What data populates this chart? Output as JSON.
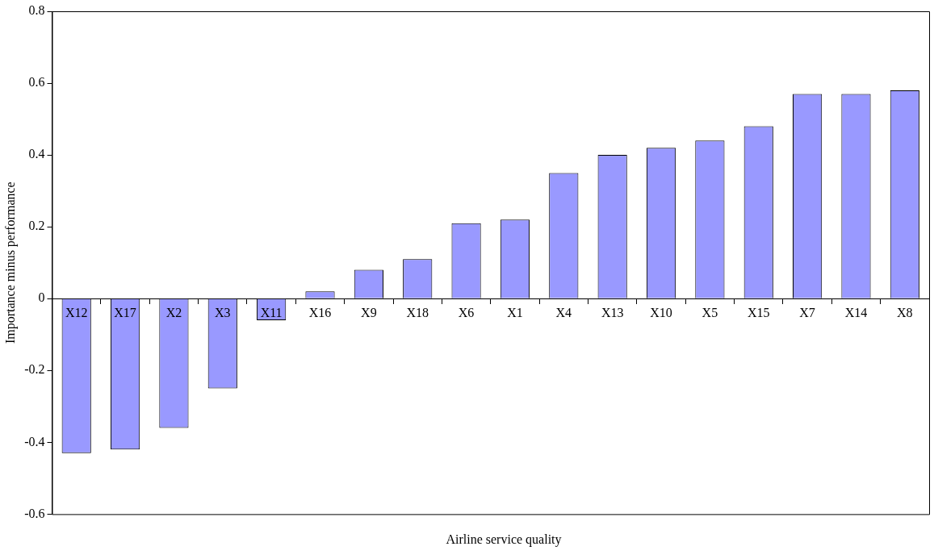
{
  "chart_data": {
    "type": "bar",
    "xlabel": "Airline service quality",
    "ylabel": "Importance minus performance",
    "categories": [
      "X12",
      "X17",
      "X2",
      "X3",
      "X11",
      "X16",
      "X9",
      "X18",
      "X6",
      "X1",
      "X4",
      "X13",
      "X10",
      "X5",
      "X15",
      "X7",
      "X14",
      "X8"
    ],
    "values": [
      -0.43,
      -0.42,
      -0.36,
      -0.25,
      -0.06,
      0.02,
      0.08,
      0.11,
      0.21,
      0.22,
      0.35,
      0.4,
      0.42,
      0.44,
      0.48,
      0.57,
      0.57,
      0.58
    ],
    "color": "#9999ff",
    "ylim": [
      -0.6,
      0.8
    ],
    "yticks": [
      -0.6,
      -0.4,
      -0.2,
      0,
      0.2,
      0.4,
      0.6,
      0.8
    ]
  }
}
